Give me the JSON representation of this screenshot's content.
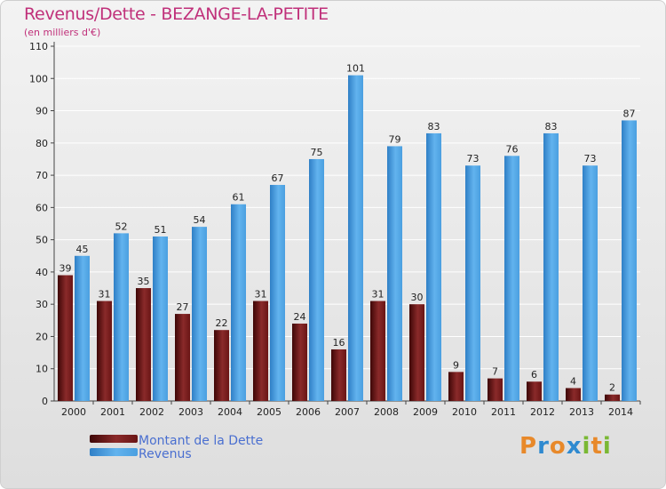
{
  "chart_data": {
    "type": "bar",
    "title": "Revenus/Dette - BEZANGE-LA-PETITE",
    "subtitle": "(en milliers d'€)",
    "categories": [
      "2000",
      "2001",
      "2002",
      "2003",
      "2004",
      "2005",
      "2006",
      "2007",
      "2008",
      "2009",
      "2010",
      "2011",
      "2012",
      "2013",
      "2014"
    ],
    "series": [
      {
        "name": "Montant de la Dette",
        "color": "#7a1e1e",
        "values": [
          39,
          31,
          35,
          27,
          22,
          31,
          24,
          16,
          31,
          30,
          9,
          7,
          6,
          4,
          2
        ]
      },
      {
        "name": "Revenus",
        "color": "#4a9fe0",
        "values": [
          45,
          52,
          51,
          54,
          61,
          67,
          75,
          101,
          79,
          83,
          73,
          76,
          83,
          73,
          87
        ]
      }
    ],
    "ylim": [
      0,
      110
    ],
    "yticks": [
      0,
      10,
      20,
      30,
      40,
      50,
      60,
      70,
      80,
      90,
      100,
      110
    ],
    "grid": true,
    "legend": "bottom-left"
  },
  "logo": {
    "p": "P",
    "r": "r",
    "o": "o",
    "x": "x",
    "i": "i",
    "t": "t",
    "i2": "i"
  }
}
